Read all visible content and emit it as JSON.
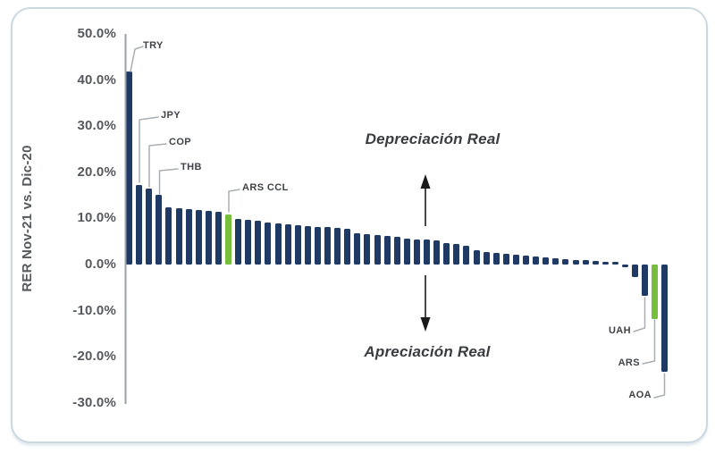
{
  "chart_data": {
    "type": "bar",
    "title": "",
    "xlabel": "",
    "ylabel": "RER Nov-21 vs. Dic-20",
    "ylim": [
      -30,
      50
    ],
    "grid": false,
    "legend": "none",
    "yticks": [
      {
        "value": 50,
        "label": "50.0%"
      },
      {
        "value": 40,
        "label": "40.0%"
      },
      {
        "value": 30,
        "label": "30.0%"
      },
      {
        "value": 20,
        "label": "20.0%"
      },
      {
        "value": 10,
        "label": "10.0%"
      },
      {
        "value": 0,
        "label": "0.0%"
      },
      {
        "value": -10,
        "label": "-10.0%"
      },
      {
        "value": -20,
        "label": "-20.0%"
      },
      {
        "value": -30,
        "label": "-30.0%"
      }
    ],
    "colors": {
      "bar": "#1f3a64",
      "highlight": "#76be3c",
      "axis_line": "#9aa1a8",
      "leader_line": "#a9aeb3",
      "arrow": "#1a1a1a"
    },
    "bars": {
      "values": [
        41.9,
        17.3,
        16.4,
        15.1,
        12.4,
        12.2,
        12.0,
        11.8,
        11.6,
        11.4,
        10.9,
        9.9,
        9.6,
        9.4,
        9.1,
        8.9,
        8.7,
        8.5,
        8.3,
        8.2,
        8.1,
        8.0,
        7.8,
        6.7,
        6.5,
        6.4,
        6.2,
        6.0,
        5.7,
        5.5,
        5.4,
        5.2,
        4.7,
        4.4,
        4.1,
        3.1,
        2.8,
        2.5,
        2.3,
        2.2,
        2.0,
        1.8,
        1.5,
        1.3,
        1.2,
        1.0,
        0.9,
        0.8,
        0.6,
        0.5,
        -0.6,
        -2.7,
        -6.8,
        -11.8,
        -23.3
      ],
      "highlight_indices": [
        10,
        53
      ]
    },
    "callouts": [
      {
        "index": 0,
        "label": "TRY"
      },
      {
        "index": 1,
        "label": "JPY"
      },
      {
        "index": 2,
        "label": "COP"
      },
      {
        "index": 3,
        "label": "THB"
      },
      {
        "index": 10,
        "label": "ARS CCL"
      },
      {
        "index": 52,
        "label": "UAH"
      },
      {
        "index": 53,
        "label": "ARS"
      },
      {
        "index": 54,
        "label": "AOA"
      }
    ],
    "annotations": {
      "depreciation": "Depreciación Real",
      "appreciation": "Apreciación Real"
    }
  }
}
